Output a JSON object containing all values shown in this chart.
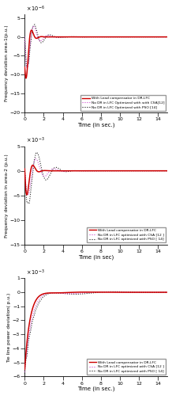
{
  "subplot1": {
    "ylabel": "Frequency deviation area-1(p.u.)",
    "xlabel": "Time (in sec.)",
    "ylim": [
      -20,
      6
    ],
    "xlim": [
      0,
      15
    ],
    "yticks": [
      -20,
      -15,
      -10,
      -5,
      0,
      5
    ],
    "scale_exp": -6
  },
  "subplot2": {
    "ylabel": "Frequency deviation in area-2 (p.u.)",
    "xlabel": "Time (in sec)",
    "ylim": [
      -15,
      5
    ],
    "xlim": [
      0,
      15
    ],
    "yticks": [
      -15,
      -10,
      -5,
      0,
      5
    ],
    "scale_exp": -3
  },
  "subplot3": {
    "ylabel": "Tie line power deviation( p.u.)",
    "xlabel": "Time (in sec.)",
    "ylim": [
      -6,
      1
    ],
    "xlim": [
      0,
      15
    ],
    "yticks": [
      -6,
      -5,
      -4,
      -3,
      -2,
      -1,
      0,
      1
    ],
    "scale_exp": -3
  },
  "legend": {
    "line1": "With Lead compensator in DR-LFC",
    "line2_sub1": "No DR in LFC Optimized with with CSA[12]",
    "line3_sub1": "No DR in LFC Optimized with PSO [14]",
    "line2_sub23": "No DR in LFC optimized with CSA [12 ]",
    "line3_sub23": "No DR in LFC optimized with PSO [ 14]"
  },
  "colors": {
    "red": "#cc0000",
    "magenta": "#cc44cc",
    "black": "#111111"
  },
  "figsize": [
    2.18,
    5.0
  ],
  "dpi": 100
}
